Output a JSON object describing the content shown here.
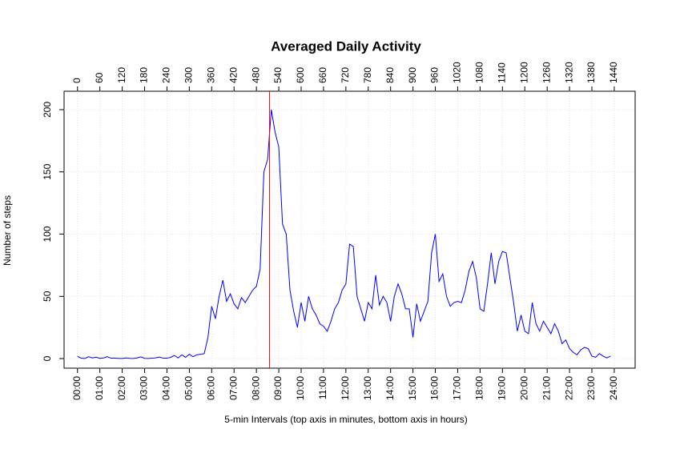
{
  "chart_data": {
    "type": "line",
    "title": "Averaged Daily Activity",
    "x_label": "5-min Intervals (top axis in minutes, bottom axis in hours)",
    "y_label": "Number of steps",
    "x": [
      0,
      10,
      20,
      30,
      40,
      50,
      60,
      70,
      80,
      90,
      100,
      110,
      120,
      130,
      140,
      150,
      160,
      170,
      180,
      190,
      200,
      210,
      220,
      230,
      240,
      250,
      260,
      270,
      280,
      290,
      300,
      310,
      320,
      330,
      340,
      350,
      360,
      370,
      380,
      390,
      400,
      410,
      420,
      430,
      440,
      450,
      460,
      470,
      480,
      490,
      500,
      510,
      520,
      530,
      540,
      550,
      560,
      570,
      580,
      590,
      600,
      610,
      620,
      630,
      640,
      650,
      660,
      670,
      680,
      690,
      700,
      710,
      720,
      730,
      740,
      750,
      760,
      770,
      780,
      790,
      800,
      810,
      820,
      830,
      840,
      850,
      860,
      870,
      880,
      890,
      900,
      910,
      920,
      930,
      940,
      950,
      960,
      970,
      980,
      990,
      1000,
      1010,
      1020,
      1030,
      1040,
      1050,
      1060,
      1070,
      1080,
      1090,
      1100,
      1110,
      1120,
      1130,
      1140,
      1150,
      1160,
      1170,
      1180,
      1190,
      1200,
      1210,
      1220,
      1230,
      1240,
      1250,
      1260,
      1270,
      1280,
      1290,
      1300,
      1310,
      1320,
      1330,
      1340,
      1350,
      1360,
      1370,
      1380,
      1390,
      1400,
      1410,
      1420,
      1430
    ],
    "series": [
      {
        "name": "steps",
        "color": "#0000ff",
        "values": [
          1.7,
          0.3,
          0.1,
          1.5,
          0.5,
          1.1,
          0.2,
          0.5,
          1.5,
          0.3,
          0.3,
          0.2,
          0.1,
          0.5,
          0.2,
          0.1,
          0.5,
          1.4,
          0.2,
          0.1,
          0.3,
          0.6,
          1.2,
          0.3,
          0.3,
          1,
          2.5,
          0.5,
          3,
          1,
          3.5,
          1.5,
          3,
          3.5,
          4,
          17,
          42,
          32,
          50,
          63,
          46,
          52,
          44,
          40,
          49,
          45,
          50,
          55,
          58,
          72,
          150,
          160,
          200,
          182,
          170,
          108,
          100,
          55,
          38,
          25,
          45,
          30,
          50,
          40,
          35,
          28,
          26,
          22,
          30,
          40,
          45,
          55,
          60,
          92,
          90,
          50,
          40,
          30,
          45,
          40,
          67,
          43,
          50,
          45,
          30,
          50,
          60,
          52,
          40,
          40,
          17,
          44,
          30,
          38,
          46,
          85,
          100,
          62,
          68,
          50,
          42,
          45,
          46,
          45,
          55,
          70,
          78,
          65,
          40,
          38,
          60,
          85,
          60,
          78,
          86,
          85,
          65,
          45,
          22,
          35,
          22,
          20,
          45,
          28,
          22,
          30,
          25,
          20,
          28,
          22,
          12,
          15,
          8,
          5,
          3,
          7,
          9,
          8,
          2,
          1,
          4,
          2,
          0.5,
          2
        ]
      }
    ],
    "vline": {
      "x": 515,
      "color": "#ff0000"
    },
    "xlim": [
      -36,
      1496
    ],
    "ylim": [
      -7.7,
      214.8
    ],
    "yticks": [
      0,
      50,
      100,
      150,
      200
    ],
    "x2ticks": [
      0,
      60,
      120,
      180,
      240,
      300,
      360,
      420,
      480,
      540,
      600,
      660,
      720,
      780,
      840,
      900,
      960,
      1020,
      1080,
      1140,
      1200,
      1260,
      1320,
      1380,
      1440
    ],
    "xticks": [
      {
        "value": 0,
        "label": "00:00"
      },
      {
        "value": 60,
        "label": "01:00"
      },
      {
        "value": 120,
        "label": "02:00"
      },
      {
        "value": 180,
        "label": "03:00"
      },
      {
        "value": 240,
        "label": "04:00"
      },
      {
        "value": 300,
        "label": "05:00"
      },
      {
        "value": 360,
        "label": "06:00"
      },
      {
        "value": 420,
        "label": "07:00"
      },
      {
        "value": 480,
        "label": "08:00"
      },
      {
        "value": 540,
        "label": "09:00"
      },
      {
        "value": 600,
        "label": "10:00"
      },
      {
        "value": 660,
        "label": "11:00"
      },
      {
        "value": 720,
        "label": "12:00"
      },
      {
        "value": 780,
        "label": "13:00"
      },
      {
        "value": 840,
        "label": "14:00"
      },
      {
        "value": 900,
        "label": "15:00"
      },
      {
        "value": 960,
        "label": "16:00"
      },
      {
        "value": 1020,
        "label": "17:00"
      },
      {
        "value": 1080,
        "label": "18:00"
      },
      {
        "value": 1140,
        "label": "19:00"
      },
      {
        "value": 1200,
        "label": "20:00"
      },
      {
        "value": 1260,
        "label": "21:00"
      },
      {
        "value": 1320,
        "label": "22:00"
      },
      {
        "value": 1380,
        "label": "23:00"
      },
      {
        "value": 1440,
        "label": "24:00"
      }
    ],
    "grid": true
  }
}
